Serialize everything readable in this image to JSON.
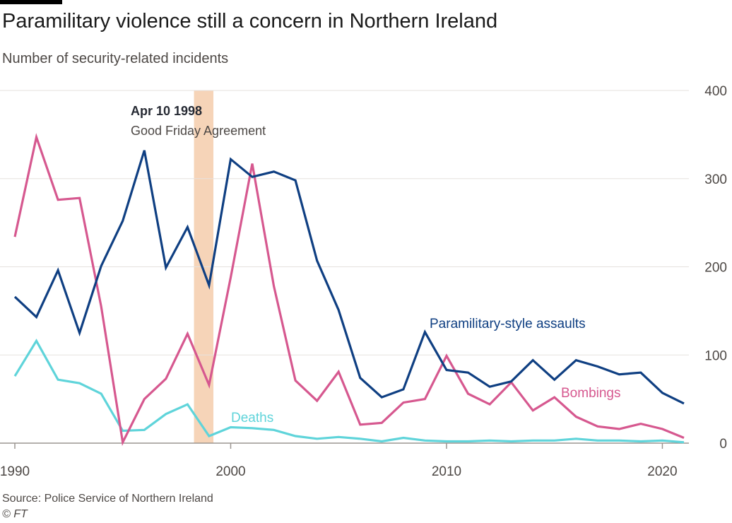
{
  "header": {
    "title": "Paramilitary violence still a concern in Northern Ireland",
    "subtitle": "Number of security-related incidents"
  },
  "footer": {
    "source": "Source: Police Service of Northern Ireland",
    "credit": "© FT"
  },
  "colors": {
    "assaults": "#0f3f82",
    "bombings": "#d6588f",
    "deaths": "#5fd4da",
    "highlight": "#f6d4b8",
    "grid": "#e6e2de",
    "zero_line": "#9b9590"
  },
  "chart_data": {
    "type": "line",
    "title": "Paramilitary violence still a concern in Northern Ireland",
    "subtitle": "Number of security-related incidents",
    "xlabel": "",
    "ylabel": "",
    "xlim": [
      1990,
      2021
    ],
    "ylim": [
      0,
      400
    ],
    "x_ticks": [
      1990,
      2000,
      2010,
      2020
    ],
    "y_ticks": [
      0,
      100,
      200,
      300,
      400
    ],
    "y_axis_side": "right",
    "grid": true,
    "x": [
      1990,
      1991,
      1992,
      1993,
      1994,
      1995,
      1996,
      1997,
      1998,
      1999,
      2000,
      2001,
      2002,
      2003,
      2004,
      2005,
      2006,
      2007,
      2008,
      2009,
      2010,
      2011,
      2012,
      2013,
      2014,
      2015,
      2016,
      2017,
      2018,
      2019,
      2020,
      2021
    ],
    "series": [
      {
        "name": "Paramilitary-style assaults",
        "key": "assaults",
        "values": [
          166,
          143,
          196,
          125,
          201,
          252,
          332,
          199,
          245,
          179,
          322,
          302,
          308,
          298,
          207,
          151,
          74,
          52,
          61,
          126,
          83,
          80,
          64,
          70,
          94,
          72,
          94,
          87,
          78,
          80,
          57,
          45
        ]
      },
      {
        "name": "Bombings",
        "key": "bombings",
        "values": [
          234,
          347,
          276,
          278,
          155,
          1,
          50,
          73,
          124,
          66,
          188,
          317,
          178,
          71,
          48,
          81,
          21,
          23,
          46,
          50,
          99,
          56,
          44,
          69,
          37,
          52,
          30,
          19,
          16,
          22,
          16,
          6
        ]
      },
      {
        "name": "Deaths",
        "key": "deaths",
        "values": [
          76,
          116,
          72,
          68,
          56,
          14,
          15,
          33,
          44,
          8,
          18,
          17,
          15,
          8,
          5,
          7,
          5,
          2,
          6,
          3,
          2,
          2,
          3,
          2,
          3,
          3,
          5,
          3,
          3,
          2,
          3,
          1
        ]
      }
    ],
    "annotations": [
      {
        "label_bold": "Apr 10 1998",
        "label": "Good Friday Agreement",
        "x_range": [
          1998.3,
          1999.2
        ]
      }
    ]
  }
}
